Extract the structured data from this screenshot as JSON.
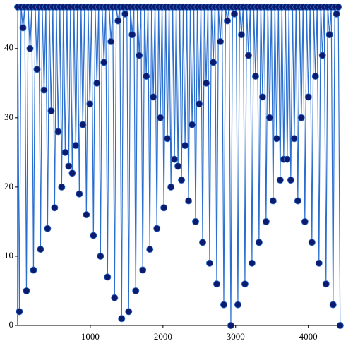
{
  "chart_data": {
    "type": "line-scatter",
    "line_color": "#2a6fd0",
    "marker_color": "#0c1b6e",
    "xlim": [
      0,
      4460
    ],
    "ylim": [
      0,
      46.5
    ],
    "xticks": [
      1000,
      2000,
      3000,
      4000
    ],
    "yticks": [
      0,
      10,
      20,
      30,
      40
    ],
    "x": [
      0,
      24,
      48,
      73,
      97,
      121,
      145,
      170,
      194,
      218,
      242,
      267,
      291,
      315,
      339,
      364,
      388,
      412,
      436,
      461,
      485,
      509,
      533,
      558,
      582,
      606,
      630,
      655,
      679,
      703,
      727,
      752,
      776,
      800,
      824,
      849,
      873,
      897,
      921,
      946,
      970,
      994,
      1018,
      1043,
      1067,
      1091,
      1115,
      1140,
      1164,
      1188,
      1212,
      1237,
      1261,
      1285,
      1309,
      1334,
      1358,
      1382,
      1406,
      1431,
      1455,
      1479,
      1503,
      1528,
      1552,
      1576,
      1600,
      1625,
      1649,
      1673,
      1697,
      1722,
      1746,
      1770,
      1794,
      1819,
      1843,
      1867,
      1891,
      1916,
      1940,
      1964,
      1988,
      2013,
      2037,
      2061,
      2085,
      2110,
      2134,
      2158,
      2182,
      2207,
      2231,
      2255,
      2279,
      2304,
      2328,
      2352,
      2376,
      2401,
      2425,
      2449,
      2473,
      2498,
      2522,
      2546,
      2570,
      2595,
      2619,
      2643,
      2667,
      2692,
      2716,
      2740,
      2764,
      2789,
      2813,
      2837,
      2861,
      2886,
      2910,
      2934,
      2958,
      2983,
      3007,
      3031,
      3055,
      3080,
      3104,
      3128,
      3152,
      3177,
      3201,
      3225,
      3249,
      3274,
      3298,
      3322,
      3346,
      3371,
      3395,
      3419,
      3443,
      3468,
      3492,
      3516,
      3540,
      3565,
      3589,
      3613,
      3637,
      3662,
      3686,
      3710,
      3734,
      3759,
      3783,
      3807,
      3831,
      3856,
      3880,
      3904,
      3928,
      3953,
      3977,
      4001,
      4025,
      4050,
      4074,
      4098,
      4122,
      4147,
      4171,
      4195,
      4219,
      4244,
      4268,
      4292,
      4316,
      4341,
      4365,
      4389,
      4413,
      4438
    ],
    "values": [
      46,
      2,
      46,
      43,
      46,
      5,
      46,
      40,
      46,
      8,
      46,
      37,
      46,
      11,
      46,
      34,
      46,
      14,
      46,
      31,
      46,
      17,
      46,
      28,
      46,
      20,
      46,
      25,
      46,
      23,
      46,
      22,
      46,
      26,
      46,
      19,
      46,
      29,
      46,
      16,
      46,
      32,
      46,
      13,
      46,
      35,
      46,
      10,
      46,
      38,
      46,
      7,
      46,
      41,
      46,
      4,
      46,
      44,
      46,
      1,
      46,
      45,
      46,
      2,
      46,
      42,
      46,
      5,
      46,
      39,
      46,
      8,
      46,
      36,
      46,
      11,
      46,
      33,
      46,
      14,
      46,
      30,
      46,
      17,
      46,
      27,
      46,
      20,
      46,
      24,
      46,
      23,
      46,
      21,
      46,
      26,
      46,
      18,
      46,
      29,
      46,
      15,
      46,
      32,
      46,
      12,
      46,
      35,
      46,
      9,
      46,
      38,
      46,
      6,
      46,
      41,
      46,
      3,
      46,
      44,
      46,
      0,
      46,
      45,
      46,
      3,
      46,
      42,
      46,
      6,
      46,
      39,
      46,
      9,
      46,
      36,
      46,
      12,
      46,
      33,
      46,
      15,
      46,
      30,
      46,
      18,
      46,
      27,
      46,
      21,
      46,
      24,
      46,
      24,
      46,
      21,
      46,
      27,
      46,
      18,
      46,
      30,
      46,
      15,
      46,
      33,
      46,
      12,
      46,
      36,
      46,
      9,
      46,
      39,
      46,
      6,
      46,
      42,
      46,
      3,
      46,
      45,
      46,
      0
    ]
  }
}
